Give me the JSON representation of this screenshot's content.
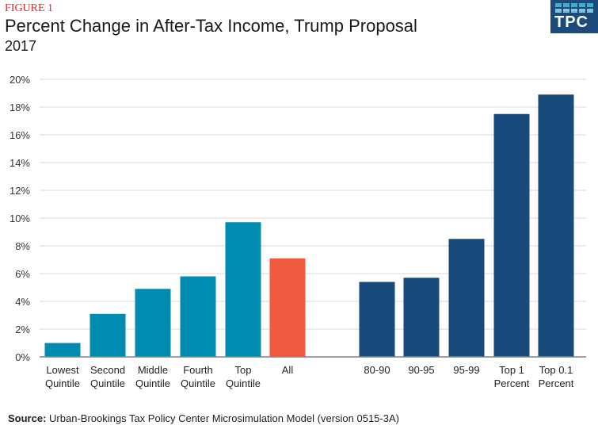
{
  "figure_label": "FIGURE 1",
  "logo": {
    "text": "TPC"
  },
  "source": {
    "label": "Source:",
    "text": "Urban-Brookings Tax Policy Center Microsimulation Model (version 0515-3A)"
  },
  "colors": {
    "quintile": "#008bb0",
    "all": "#f05a40",
    "top": "#184b7b",
    "grid": "#d9d9d9",
    "axis": "#808080"
  },
  "chart_data": {
    "type": "bar",
    "title": "Percent Change in After-Tax Income, Trump Proposal",
    "subtitle": "2017",
    "xlabel": "",
    "ylabel": "",
    "ylim": [
      0,
      20
    ],
    "yticks": [
      "0%",
      "2%",
      "4%",
      "6%",
      "8%",
      "10%",
      "12%",
      "14%",
      "16%",
      "18%",
      "20%"
    ],
    "grid": true,
    "categories": [
      [
        "Lowest",
        "Quintile"
      ],
      [
        "Second",
        "Quintile"
      ],
      [
        "Middle",
        "Quintile"
      ],
      [
        "Fourth",
        "Quintile"
      ],
      [
        "Top",
        "Quintile"
      ],
      [
        "All"
      ],
      [
        "80-90"
      ],
      [
        "90-95"
      ],
      [
        "95-99"
      ],
      [
        "Top 1",
        "Percent"
      ],
      [
        "Top 0.1",
        "Percent"
      ]
    ],
    "values": [
      1.0,
      3.1,
      4.9,
      5.8,
      9.7,
      7.1,
      5.4,
      5.7,
      8.5,
      17.5,
      18.9
    ],
    "groups": [
      "quintile",
      "quintile",
      "quintile",
      "quintile",
      "quintile",
      "all",
      "top",
      "top",
      "top",
      "top",
      "top"
    ]
  }
}
